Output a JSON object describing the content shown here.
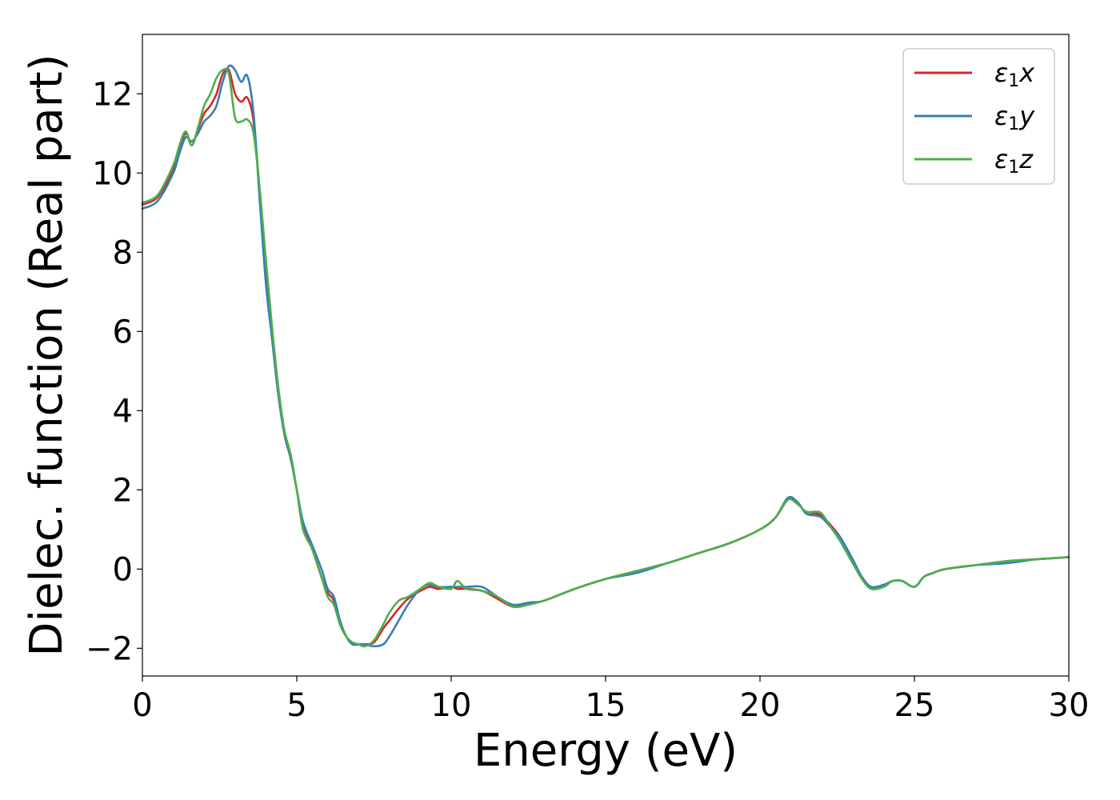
{
  "chart_data": {
    "type": "line",
    "xlabel": "Energy (eV)",
    "ylabel": "Dielec. function (Real part)",
    "xlim": [
      0,
      30
    ],
    "ylim": [
      -2.7,
      13.5
    ],
    "xticks": [
      0,
      5,
      10,
      15,
      20,
      25,
      30
    ],
    "yticks": [
      -2,
      0,
      2,
      4,
      6,
      8,
      10,
      12
    ],
    "xtick_labels": [
      "0",
      "5",
      "10",
      "15",
      "20",
      "25",
      "30"
    ],
    "ytick_labels": [
      "−2",
      "0",
      "2",
      "4",
      "6",
      "8",
      "10",
      "12"
    ],
    "grid": false,
    "legend_position": "top-right",
    "series": [
      {
        "name": "ε₁x",
        "legend": {
          "base": "ε",
          "sub": "1",
          "var": "x"
        },
        "color": "#d62728",
        "x": [
          0,
          0.5,
          1.0,
          1.2,
          1.4,
          1.6,
          1.8,
          2.0,
          2.2,
          2.4,
          2.6,
          2.8,
          3.0,
          3.2,
          3.4,
          3.6,
          3.8,
          4.0,
          4.2,
          4.4,
          4.6,
          4.8,
          5.0,
          5.2,
          5.5,
          5.8,
          6.0,
          6.2,
          6.4,
          6.6,
          6.8,
          7.0,
          7.2,
          7.5,
          7.8,
          8.0,
          8.3,
          8.6,
          9.0,
          9.3,
          9.6,
          10.0,
          10.2,
          10.5,
          11.0,
          11.5,
          12.0,
          12.5,
          13.0,
          14.0,
          15.0,
          16.0,
          17.0,
          18.0,
          19.0,
          20.0,
          20.5,
          20.9,
          21.2,
          21.5,
          21.8,
          22.0,
          22.3,
          22.6,
          23.0,
          23.3,
          23.6,
          24.0,
          24.3,
          24.6,
          25.0,
          25.3,
          25.6,
          26.0,
          27.0,
          28.0,
          29.0,
          30.0
        ],
        "y": [
          9.2,
          9.4,
          10.1,
          10.6,
          11.0,
          10.7,
          11.1,
          11.5,
          11.7,
          12.0,
          12.5,
          12.6,
          12.0,
          11.8,
          11.9,
          11.3,
          9.5,
          7.5,
          6.0,
          4.5,
          3.4,
          2.8,
          2.0,
          1.1,
          0.5,
          -0.2,
          -0.6,
          -0.8,
          -1.4,
          -1.7,
          -1.9,
          -1.9,
          -1.9,
          -1.85,
          -1.5,
          -1.3,
          -1.0,
          -0.75,
          -0.55,
          -0.45,
          -0.5,
          -0.45,
          -0.5,
          -0.5,
          -0.55,
          -0.75,
          -0.95,
          -0.85,
          -0.8,
          -0.5,
          -0.25,
          -0.05,
          0.15,
          0.4,
          0.65,
          1.0,
          1.3,
          1.75,
          1.7,
          1.4,
          1.4,
          1.35,
          1.1,
          0.8,
          0.2,
          -0.2,
          -0.45,
          -0.4,
          -0.3,
          -0.3,
          -0.45,
          -0.2,
          -0.1,
          0.0,
          0.1,
          0.2,
          0.25,
          0.3
        ]
      },
      {
        "name": "ε₁y",
        "legend": {
          "base": "ε",
          "sub": "1",
          "var": "y"
        },
        "color": "#377eb8",
        "x": [
          0,
          0.5,
          1.0,
          1.2,
          1.4,
          1.6,
          1.8,
          2.0,
          2.2,
          2.4,
          2.6,
          2.8,
          3.0,
          3.2,
          3.4,
          3.6,
          3.8,
          4.0,
          4.2,
          4.4,
          4.6,
          4.8,
          5.0,
          5.2,
          5.5,
          5.8,
          6.0,
          6.2,
          6.4,
          6.6,
          6.8,
          7.0,
          7.2,
          7.5,
          7.8,
          8.0,
          8.3,
          8.6,
          9.0,
          9.3,
          9.6,
          10.0,
          10.2,
          10.5,
          11.0,
          11.5,
          12.0,
          12.5,
          13.0,
          14.0,
          15.0,
          16.0,
          17.0,
          18.0,
          19.0,
          20.0,
          20.5,
          20.9,
          21.2,
          21.5,
          21.8,
          22.0,
          22.3,
          22.6,
          23.0,
          23.3,
          23.6,
          24.0,
          24.3,
          24.6,
          25.0,
          25.3,
          25.6,
          26.0,
          27.0,
          28.0,
          29.0,
          30.0
        ],
        "y": [
          9.1,
          9.3,
          10.0,
          10.5,
          10.9,
          10.8,
          11.0,
          11.3,
          11.45,
          11.7,
          12.3,
          12.7,
          12.6,
          12.3,
          12.45,
          11.5,
          9.3,
          7.2,
          5.8,
          4.4,
          3.4,
          2.8,
          2.0,
          1.2,
          0.6,
          0.0,
          -0.5,
          -0.7,
          -1.3,
          -1.7,
          -1.9,
          -1.9,
          -1.9,
          -1.95,
          -1.9,
          -1.7,
          -1.3,
          -0.9,
          -0.5,
          -0.4,
          -0.45,
          -0.45,
          -0.45,
          -0.45,
          -0.45,
          -0.7,
          -0.9,
          -0.85,
          -0.8,
          -0.5,
          -0.25,
          -0.1,
          0.15,
          0.4,
          0.65,
          1.0,
          1.3,
          1.8,
          1.7,
          1.4,
          1.35,
          1.3,
          1.05,
          0.8,
          0.25,
          -0.2,
          -0.45,
          -0.4,
          -0.3,
          -0.3,
          -0.45,
          -0.2,
          -0.1,
          0.0,
          0.1,
          0.15,
          0.25,
          0.3
        ]
      },
      {
        "name": "ε₁z",
        "legend": {
          "base": "ε",
          "sub": "1",
          "var": "z"
        },
        "color": "#4daf4a",
        "x": [
          0,
          0.5,
          1.0,
          1.2,
          1.4,
          1.6,
          1.8,
          2.0,
          2.2,
          2.4,
          2.6,
          2.8,
          3.0,
          3.2,
          3.4,
          3.6,
          3.8,
          4.0,
          4.2,
          4.4,
          4.6,
          4.8,
          5.0,
          5.2,
          5.5,
          5.8,
          6.0,
          6.2,
          6.4,
          6.6,
          6.8,
          7.0,
          7.2,
          7.5,
          7.8,
          8.0,
          8.3,
          8.6,
          9.0,
          9.3,
          9.6,
          10.0,
          10.2,
          10.5,
          11.0,
          11.5,
          12.0,
          12.5,
          13.0,
          14.0,
          15.0,
          16.0,
          17.0,
          18.0,
          19.0,
          20.0,
          20.5,
          20.9,
          21.2,
          21.5,
          21.8,
          22.0,
          22.3,
          22.6,
          23.0,
          23.3,
          23.6,
          24.0,
          24.3,
          24.6,
          25.0,
          25.3,
          25.6,
          26.0,
          27.0,
          28.0,
          29.0,
          30.0
        ],
        "y": [
          9.25,
          9.45,
          10.2,
          10.7,
          11.05,
          10.7,
          11.15,
          11.7,
          12.0,
          12.4,
          12.6,
          12.5,
          11.4,
          11.3,
          11.35,
          11.0,
          9.6,
          7.8,
          6.1,
          4.6,
          3.5,
          2.9,
          2.0,
          1.0,
          0.5,
          -0.2,
          -0.7,
          -0.9,
          -1.4,
          -1.7,
          -1.85,
          -1.9,
          -1.95,
          -1.8,
          -1.4,
          -1.1,
          -0.8,
          -0.7,
          -0.5,
          -0.35,
          -0.45,
          -0.5,
          -0.3,
          -0.5,
          -0.55,
          -0.7,
          -0.95,
          -0.9,
          -0.8,
          -0.5,
          -0.25,
          -0.05,
          0.15,
          0.4,
          0.65,
          1.0,
          1.3,
          1.75,
          1.65,
          1.45,
          1.45,
          1.4,
          1.05,
          0.7,
          0.15,
          -0.25,
          -0.5,
          -0.45,
          -0.3,
          -0.3,
          -0.45,
          -0.2,
          -0.1,
          0.0,
          0.1,
          0.2,
          0.25,
          0.3
        ]
      }
    ]
  }
}
